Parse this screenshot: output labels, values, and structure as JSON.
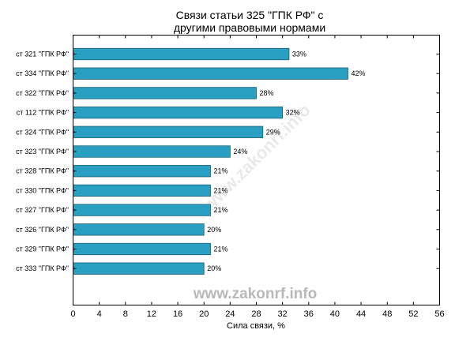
{
  "chart_data": {
    "type": "bar",
    "orientation": "horizontal",
    "title_lines": [
      "Связи статьи 325 \"ГПК РФ\" с",
      "другими правовыми нормами"
    ],
    "categories": [
      "ст 321 \"ГПК РФ\"",
      "ст 334 \"ГПК РФ\"",
      "ст 322 \"ГПК РФ\"",
      "ст 112 \"ГПК РФ\"",
      "ст 324 \"ГПК РФ\"",
      "ст 323 \"ГПК РФ\"",
      "ст 328 \"ГПК РФ\"",
      "ст 330 \"ГПК РФ\"",
      "ст 327 \"ГПК РФ\"",
      "ст 326 \"ГПК РФ\"",
      "ст 329 \"ГПК РФ\"",
      "ст 333 \"ГПК РФ\""
    ],
    "values": [
      33,
      42,
      28,
      32,
      29,
      24,
      21,
      21,
      21,
      20,
      21,
      20
    ],
    "data_labels": [
      "33%",
      "42%",
      "28%",
      "32%",
      "29%",
      "24%",
      "21%",
      "21%",
      "21%",
      "20%",
      "21%",
      "20%"
    ],
    "xlabel": "Сила связи, %",
    "xlim": [
      0,
      56
    ],
    "xticks": [
      "0",
      "4",
      "8",
      "12",
      "16",
      "20",
      "24",
      "28",
      "32",
      "36",
      "40",
      "44",
      "48",
      "52",
      "56"
    ],
    "grid": false,
    "bar_color": "#2a9fc4",
    "bar_edge_color": "#1c5d72"
  },
  "watermark": "www.zakonrf.info"
}
